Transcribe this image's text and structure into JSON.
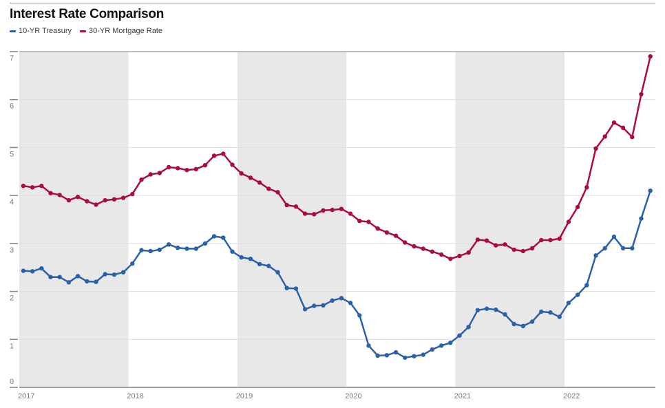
{
  "header": {
    "title": "Interest Rate Comparison"
  },
  "legend": [
    {
      "label": "10-YR Treasury",
      "color": "#2a61a8"
    },
    {
      "label": "30-YR Mortgage Rate",
      "color": "#ab0c3f"
    }
  ],
  "colors": {
    "treasury_line": "#2a61a8",
    "mortgage_line": "#ab0c3f",
    "year_band": "#e8e8e8",
    "gridline": "#dcdcdc",
    "plot_top_border": "#a8a8a8",
    "axis_line": "#9b9b9b",
    "tick_mark": "#8a8a8a",
    "tick_label": "#7a7a7a",
    "title_text": "#111111"
  },
  "chart_data": {
    "type": "line",
    "title": "Interest Rate Comparison",
    "x_frequency": "monthly",
    "x_start": "2017-01",
    "x_end": "2022-10",
    "n_points": 70,
    "x_tick_labels": [
      "2017",
      "2018",
      "2019",
      "2020",
      "2021",
      "2022"
    ],
    "shaded_year_bands": [
      "2017",
      "2019",
      "2021"
    ],
    "y_ticks": [
      0,
      1,
      2,
      3,
      4,
      5,
      6,
      7
    ],
    "ylim": [
      0,
      7
    ],
    "grid": true,
    "legend_position": "top-left",
    "series": [
      {
        "name": "10-YR Treasury",
        "color": "#2a61a8",
        "values": [
          2.43,
          2.42,
          2.48,
          2.3,
          2.3,
          2.19,
          2.32,
          2.21,
          2.2,
          2.36,
          2.35,
          2.4,
          2.58,
          2.86,
          2.84,
          2.87,
          2.98,
          2.91,
          2.89,
          2.89,
          3.0,
          3.15,
          3.12,
          2.83,
          2.71,
          2.68,
          2.57,
          2.53,
          2.4,
          2.07,
          2.06,
          1.63,
          1.7,
          1.71,
          1.81,
          1.86,
          1.76,
          1.5,
          0.87,
          0.66,
          0.67,
          0.73,
          0.62,
          0.65,
          0.68,
          0.79,
          0.87,
          0.93,
          1.08,
          1.26,
          1.61,
          1.64,
          1.62,
          1.52,
          1.32,
          1.28,
          1.37,
          1.58,
          1.56,
          1.47,
          1.76,
          1.93,
          2.13,
          2.75,
          2.9,
          3.14,
          2.9,
          2.9,
          3.52,
          4.1
        ]
      },
      {
        "name": "30-YR Mortgage Rate",
        "color": "#ab0c3f",
        "values": [
          4.2,
          4.17,
          4.2,
          4.05,
          4.01,
          3.9,
          3.97,
          3.88,
          3.81,
          3.9,
          3.92,
          3.95,
          4.03,
          4.33,
          4.44,
          4.47,
          4.59,
          4.57,
          4.53,
          4.55,
          4.63,
          4.83,
          4.87,
          4.64,
          4.46,
          4.37,
          4.27,
          4.14,
          4.07,
          3.8,
          3.77,
          3.62,
          3.61,
          3.69,
          3.7,
          3.72,
          3.62,
          3.47,
          3.45,
          3.31,
          3.23,
          3.16,
          3.02,
          2.94,
          2.89,
          2.83,
          2.77,
          2.68,
          2.74,
          2.81,
          3.08,
          3.06,
          2.96,
          2.98,
          2.87,
          2.84,
          2.9,
          3.07,
          3.07,
          3.1,
          3.45,
          3.76,
          4.17,
          4.98,
          5.23,
          5.52,
          5.41,
          5.22,
          6.11,
          6.9
        ]
      }
    ]
  }
}
